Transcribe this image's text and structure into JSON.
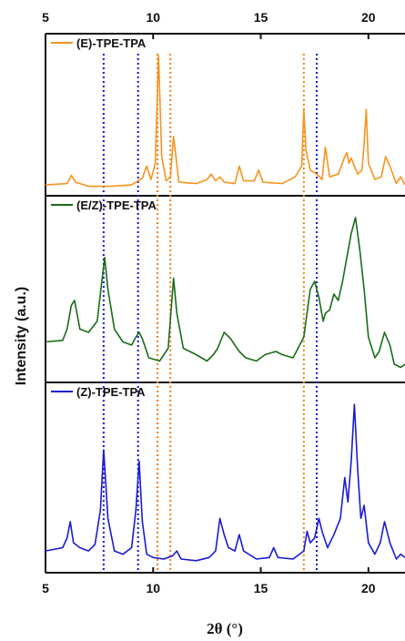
{
  "chart_data": {
    "type": "line",
    "xlabel": "2θ (°)",
    "ylabel": "Intensity (a.u.)",
    "xlim": [
      5,
      21.7
    ],
    "xticks": [
      5,
      10,
      15,
      20
    ],
    "x_tick_labels": [
      "5",
      "10",
      "15",
      "20"
    ],
    "yticks": "none",
    "grid": false,
    "legend_position": "top-left of each panel",
    "reference_lines": [
      {
        "x": 7.7,
        "color": "#1010d0",
        "style": "dotted"
      },
      {
        "x": 9.3,
        "color": "#1010d0",
        "style": "dotted"
      },
      {
        "x": 10.2,
        "color": "#f08020",
        "style": "dotted"
      },
      {
        "x": 10.8,
        "color": "#f08020",
        "style": "dotted"
      },
      {
        "x": 17.0,
        "color": "#f08020",
        "style": "dotted"
      },
      {
        "x": 17.6,
        "color": "#1010d0",
        "style": "dotted"
      }
    ],
    "panels": [
      {
        "name": "(E)-TPE-TPA",
        "color": "#f7931e",
        "x": [
          5.0,
          6.0,
          6.2,
          6.4,
          7.0,
          8.0,
          9.0,
          9.5,
          9.7,
          9.9,
          10.1,
          10.25,
          10.4,
          10.6,
          10.8,
          10.95,
          11.2,
          12.0,
          12.5,
          12.7,
          12.9,
          13.1,
          13.3,
          13.8,
          14.0,
          14.2,
          14.7,
          14.9,
          15.1,
          16.0,
          16.6,
          16.9,
          17.0,
          17.1,
          17.3,
          17.6,
          17.85,
          18.0,
          18.2,
          18.6,
          18.9,
          19.0,
          19.1,
          19.2,
          19.35,
          19.5,
          19.7,
          19.8,
          19.9,
          20.0,
          20.3,
          20.6,
          20.8,
          21.0,
          21.3,
          21.5,
          21.7
        ],
        "values": [
          0.04,
          0.05,
          0.11,
          0.06,
          0.03,
          0.03,
          0.04,
          0.09,
          0.18,
          0.08,
          0.2,
          1.0,
          0.25,
          0.07,
          0.1,
          0.4,
          0.06,
          0.05,
          0.08,
          0.12,
          0.07,
          0.1,
          0.06,
          0.05,
          0.18,
          0.07,
          0.07,
          0.15,
          0.06,
          0.05,
          0.1,
          0.18,
          0.6,
          0.3,
          0.15,
          0.12,
          0.08,
          0.32,
          0.1,
          0.12,
          0.25,
          0.28,
          0.2,
          0.24,
          0.18,
          0.12,
          0.15,
          0.35,
          0.6,
          0.2,
          0.08,
          0.1,
          0.25,
          0.18,
          0.05,
          0.1,
          0.04
        ]
      },
      {
        "name": "(E/Z)-TPE-TPA",
        "color": "#1a6b1a",
        "x": [
          5.0,
          5.8,
          6.0,
          6.2,
          6.35,
          6.6,
          7.0,
          7.4,
          7.6,
          7.75,
          7.9,
          8.2,
          8.6,
          9.0,
          9.2,
          9.35,
          9.5,
          9.8,
          10.3,
          10.7,
          10.95,
          11.1,
          11.4,
          12.0,
          12.5,
          12.8,
          13.0,
          13.3,
          13.6,
          13.8,
          14.0,
          14.3,
          14.8,
          15.2,
          15.7,
          16.0,
          16.5,
          17.0,
          17.3,
          17.5,
          17.7,
          17.9,
          18.0,
          18.2,
          18.4,
          18.6,
          18.8,
          19.0,
          19.2,
          19.4,
          19.6,
          19.8,
          20.0,
          20.3,
          20.5,
          20.75,
          21.0,
          21.2,
          21.5,
          21.7
        ],
        "values": [
          0.22,
          0.23,
          0.3,
          0.45,
          0.48,
          0.3,
          0.28,
          0.35,
          0.58,
          0.75,
          0.55,
          0.3,
          0.22,
          0.2,
          0.25,
          0.28,
          0.24,
          0.12,
          0.1,
          0.18,
          0.62,
          0.4,
          0.18,
          0.14,
          0.1,
          0.14,
          0.18,
          0.28,
          0.24,
          0.2,
          0.16,
          0.12,
          0.1,
          0.14,
          0.16,
          0.14,
          0.12,
          0.25,
          0.55,
          0.6,
          0.5,
          0.35,
          0.4,
          0.42,
          0.52,
          0.48,
          0.6,
          0.75,
          0.9,
          1.0,
          0.8,
          0.55,
          0.25,
          0.12,
          0.16,
          0.28,
          0.2,
          0.08,
          0.06,
          0.08
        ]
      },
      {
        "name": "(Z)-TPE-TPA",
        "color": "#1a1ad4",
        "x": [
          5.0,
          5.8,
          6.0,
          6.15,
          6.3,
          6.6,
          7.0,
          7.3,
          7.55,
          7.7,
          7.9,
          8.2,
          8.6,
          9.0,
          9.2,
          9.35,
          9.5,
          9.7,
          10.0,
          10.5,
          10.9,
          11.1,
          11.3,
          12.0,
          12.6,
          12.9,
          13.1,
          13.3,
          13.5,
          13.8,
          14.0,
          14.2,
          14.8,
          15.4,
          15.6,
          15.8,
          16.5,
          17.0,
          17.15,
          17.3,
          17.5,
          17.7,
          17.85,
          18.1,
          18.4,
          18.7,
          18.9,
          19.05,
          19.2,
          19.35,
          19.5,
          19.65,
          19.8,
          20.0,
          20.3,
          20.55,
          20.75,
          21.0,
          21.3,
          21.5,
          21.7
        ],
        "values": [
          0.1,
          0.12,
          0.18,
          0.28,
          0.15,
          0.12,
          0.1,
          0.14,
          0.35,
          0.72,
          0.3,
          0.1,
          0.08,
          0.12,
          0.35,
          0.65,
          0.28,
          0.08,
          0.06,
          0.05,
          0.07,
          0.1,
          0.05,
          0.04,
          0.06,
          0.1,
          0.3,
          0.2,
          0.12,
          0.1,
          0.2,
          0.1,
          0.05,
          0.06,
          0.12,
          0.06,
          0.05,
          0.1,
          0.22,
          0.15,
          0.18,
          0.3,
          0.22,
          0.12,
          0.2,
          0.3,
          0.55,
          0.4,
          0.65,
          1.0,
          0.6,
          0.3,
          0.38,
          0.15,
          0.08,
          0.15,
          0.28,
          0.15,
          0.05,
          0.08,
          0.06
        ]
      }
    ]
  }
}
